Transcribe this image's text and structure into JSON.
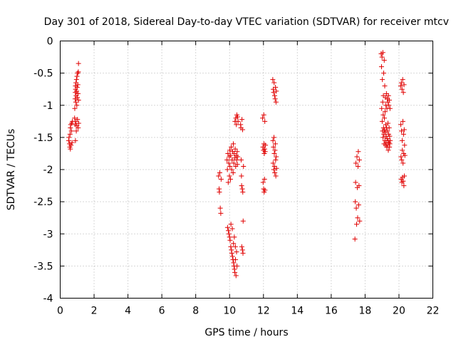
{
  "chart_data": {
    "type": "scatter",
    "title": "Day 301 of 2018, Sidereal Day-to-day VTEC variation (SDTVAR) for receiver mtcv",
    "xlabel": "GPS time / hours",
    "ylabel": "SDTVAR / TECUs",
    "xlim": [
      0,
      22
    ],
    "ylim": [
      -4,
      0
    ],
    "grid": true,
    "marker": "+",
    "color": "#e00000",
    "x_ticks": [
      0,
      2,
      4,
      6,
      8,
      10,
      12,
      14,
      16,
      18,
      20,
      22
    ],
    "x_tick_labels": [
      "0",
      "2",
      "4",
      "6",
      "8",
      "10",
      "12",
      "14",
      "16",
      "18",
      "20",
      "22"
    ],
    "y_ticks": [
      0,
      -0.5,
      -1,
      -1.5,
      -2,
      -2.5,
      -3,
      -3.5,
      -4
    ],
    "y_tick_labels": [
      "0",
      "-0.5",
      "-1",
      "-1.5",
      "-2",
      "-2.5",
      "-3",
      "-3.5",
      "-4"
    ],
    "series": [
      {
        "name": "SDTVAR",
        "points": [
          [
            0.5,
            -1.55
          ],
          [
            0.52,
            -1.5
          ],
          [
            0.55,
            -1.6
          ],
          [
            0.57,
            -1.65
          ],
          [
            0.58,
            -1.45
          ],
          [
            0.6,
            -1.35
          ],
          [
            0.6,
            -1.68
          ],
          [
            0.62,
            -1.3
          ],
          [
            0.64,
            -1.62
          ],
          [
            0.66,
            -1.4
          ],
          [
            0.68,
            -1.28
          ],
          [
            0.7,
            -1.58
          ],
          [
            0.72,
            -1.25
          ],
          [
            0.85,
            -1.2
          ],
          [
            0.86,
            -1.05
          ],
          [
            0.88,
            -0.9
          ],
          [
            0.88,
            -1.3
          ],
          [
            0.89,
            -0.8
          ],
          [
            0.9,
            -0.7
          ],
          [
            0.9,
            -1.55
          ],
          [
            0.91,
            -0.75
          ],
          [
            0.92,
            -0.95
          ],
          [
            0.92,
            -1.25
          ],
          [
            0.93,
            -0.65
          ],
          [
            0.94,
            -0.85
          ],
          [
            0.95,
            -1.4
          ],
          [
            0.96,
            -0.6
          ],
          [
            0.97,
            -0.78
          ],
          [
            0.98,
            -1.0
          ],
          [
            0.98,
            -1.32
          ],
          [
            0.99,
            -0.55
          ],
          [
            1.0,
            -0.72
          ],
          [
            1.01,
            -0.88
          ],
          [
            1.02,
            -1.22
          ],
          [
            1.03,
            -0.5
          ],
          [
            1.04,
            -0.68
          ],
          [
            1.05,
            -0.82
          ],
          [
            1.06,
            -1.35
          ],
          [
            1.07,
            -0.48
          ],
          [
            1.08,
            -0.35
          ],
          [
            1.08,
            -0.92
          ],
          [
            1.09,
            -1.28
          ],
          [
            9.35,
            -2.1
          ],
          [
            9.38,
            -2.3
          ],
          [
            9.4,
            -2.35
          ],
          [
            9.42,
            -2.05
          ],
          [
            9.45,
            -2.6
          ],
          [
            9.48,
            -2.68
          ],
          [
            9.5,
            -2.15
          ],
          [
            9.85,
            -1.85
          ],
          [
            9.87,
            -2.0
          ],
          [
            9.88,
            -2.9
          ],
          [
            9.9,
            -1.75
          ],
          [
            9.92,
            -2.2
          ],
          [
            9.93,
            -2.95
          ],
          [
            9.95,
            -1.9
          ],
          [
            9.96,
            -3.0
          ],
          [
            9.98,
            -1.8
          ],
          [
            9.99,
            -2.1
          ],
          [
            10.0,
            -3.05
          ],
          [
            10.01,
            -1.7
          ],
          [
            10.02,
            -1.95
          ],
          [
            10.03,
            -3.1
          ],
          [
            10.05,
            -2.15
          ],
          [
            10.06,
            -1.78
          ],
          [
            10.07,
            -3.2
          ],
          [
            10.08,
            -2.85
          ],
          [
            10.1,
            -1.65
          ],
          [
            10.11,
            -3.25
          ],
          [
            10.12,
            -2.0
          ],
          [
            10.13,
            -3.3
          ],
          [
            10.15,
            -1.85
          ],
          [
            10.16,
            -2.92
          ],
          [
            10.17,
            -3.35
          ],
          [
            10.18,
            -1.72
          ],
          [
            10.2,
            -3.4
          ],
          [
            10.21,
            -2.05
          ],
          [
            10.22,
            -1.6
          ],
          [
            10.23,
            -3.15
          ],
          [
            10.24,
            -3.45
          ],
          [
            10.25,
            -1.9
          ],
          [
            10.26,
            -3.5
          ],
          [
            10.27,
            -1.75
          ],
          [
            10.28,
            -3.05
          ],
          [
            10.29,
            -3.55
          ],
          [
            10.3,
            -1.82
          ],
          [
            10.31,
            -3.6
          ],
          [
            10.32,
            -1.25
          ],
          [
            10.33,
            -1.68
          ],
          [
            10.34,
            -3.2
          ],
          [
            10.35,
            -3.4
          ],
          [
            10.36,
            -1.95
          ],
          [
            10.37,
            -1.2
          ],
          [
            10.38,
            -3.65
          ],
          [
            10.39,
            -1.78
          ],
          [
            10.4,
            -1.3
          ],
          [
            10.41,
            -3.28
          ],
          [
            10.42,
            -1.85
          ],
          [
            10.43,
            -1.15
          ],
          [
            10.44,
            -3.5
          ],
          [
            10.45,
            -1.72
          ],
          [
            10.46,
            -1.92
          ],
          [
            10.47,
            -1.18
          ],
          [
            10.48,
            -1.8
          ],
          [
            10.5,
            -1.25
          ],
          [
            10.65,
            -1.3
          ],
          [
            10.67,
            -1.35
          ],
          [
            10.68,
            -1.85
          ],
          [
            10.7,
            -2.1
          ],
          [
            10.71,
            -2.25
          ],
          [
            10.72,
            -3.2
          ],
          [
            10.73,
            -1.22
          ],
          [
            10.75,
            -2.3
          ],
          [
            10.76,
            -3.25
          ],
          [
            10.77,
            -1.38
          ],
          [
            10.78,
            -2.35
          ],
          [
            10.79,
            -3.3
          ],
          [
            10.8,
            -2.8
          ],
          [
            10.82,
            -1.95
          ],
          [
            11.95,
            -1.2
          ],
          [
            11.97,
            -1.65
          ],
          [
            11.98,
            -2.2
          ],
          [
            12.0,
            -1.7
          ],
          [
            12.01,
            -2.3
          ],
          [
            12.02,
            -1.15
          ],
          [
            12.03,
            -1.6
          ],
          [
            12.04,
            -2.35
          ],
          [
            12.05,
            -1.75
          ],
          [
            12.06,
            -2.15
          ],
          [
            12.07,
            -1.68
          ],
          [
            12.08,
            -1.25
          ],
          [
            12.09,
            -2.32
          ],
          [
            12.1,
            -1.72
          ],
          [
            12.12,
            -1.62
          ],
          [
            12.55,
            -0.6
          ],
          [
            12.56,
            -1.55
          ],
          [
            12.57,
            -1.9
          ],
          [
            12.58,
            -0.75
          ],
          [
            12.59,
            -1.65
          ],
          [
            12.6,
            -0.8
          ],
          [
            12.61,
            -2.0
          ],
          [
            12.62,
            -1.5
          ],
          [
            12.63,
            -0.65
          ],
          [
            12.64,
            -1.75
          ],
          [
            12.65,
            -1.95
          ],
          [
            12.66,
            -0.85
          ],
          [
            12.67,
            -2.05
          ],
          [
            12.68,
            -1.7
          ],
          [
            12.69,
            -0.9
          ],
          [
            12.7,
            -1.6
          ],
          [
            12.71,
            -0.72
          ],
          [
            12.72,
            -1.85
          ],
          [
            12.73,
            -2.1
          ],
          [
            12.74,
            -0.95
          ],
          [
            12.75,
            -1.8
          ],
          [
            12.76,
            -0.78
          ],
          [
            12.77,
            -1.98
          ],
          [
            17.4,
            -3.08
          ],
          [
            17.42,
            -2.5
          ],
          [
            17.44,
            -2.2
          ],
          [
            17.46,
            -1.9
          ],
          [
            17.48,
            -2.6
          ],
          [
            17.5,
            -2.85
          ],
          [
            17.52,
            -1.8
          ],
          [
            17.54,
            -2.28
          ],
          [
            17.56,
            -2.75
          ],
          [
            17.58,
            -1.95
          ],
          [
            17.6,
            -1.72
          ],
          [
            17.62,
            -2.55
          ],
          [
            17.64,
            -2.25
          ],
          [
            17.66,
            -1.85
          ],
          [
            17.68,
            -2.8
          ],
          [
            18.95,
            -0.2
          ],
          [
            18.97,
            -0.4
          ],
          [
            18.98,
            -1.05
          ],
          [
            19.0,
            -0.25
          ],
          [
            19.01,
            -1.25
          ],
          [
            19.02,
            -0.6
          ],
          [
            19.03,
            -1.4
          ],
          [
            19.04,
            -0.95
          ],
          [
            19.05,
            -0.18
          ],
          [
            19.06,
            -1.5
          ],
          [
            19.07,
            -1.15
          ],
          [
            19.08,
            -0.85
          ],
          [
            19.09,
            -1.35
          ],
          [
            19.1,
            -0.5
          ],
          [
            19.11,
            -1.45
          ],
          [
            19.12,
            -1.6
          ],
          [
            19.13,
            -0.3
          ],
          [
            19.14,
            -1.2
          ],
          [
            19.15,
            -1.38
          ],
          [
            19.16,
            -0.7
          ],
          [
            19.17,
            -1.55
          ],
          [
            19.18,
            -1.1
          ],
          [
            19.19,
            -1.42
          ],
          [
            19.2,
            -0.88
          ],
          [
            19.21,
            -1.62
          ],
          [
            19.22,
            -1.3
          ],
          [
            19.23,
            -1.0
          ],
          [
            19.24,
            -1.48
          ],
          [
            19.25,
            -1.58
          ],
          [
            19.26,
            -0.82
          ],
          [
            19.27,
            -1.35
          ],
          [
            19.28,
            -1.65
          ],
          [
            19.29,
            -1.05
          ],
          [
            19.3,
            -1.52
          ],
          [
            19.31,
            -0.9
          ],
          [
            19.32,
            -1.4
          ],
          [
            19.33,
            -1.62
          ],
          [
            19.34,
            -0.95
          ],
          [
            19.35,
            -1.28
          ],
          [
            19.36,
            -1.55
          ],
          [
            19.37,
            -1.7
          ],
          [
            19.38,
            -0.85
          ],
          [
            19.39,
            -1.45
          ],
          [
            19.4,
            -1.0
          ],
          [
            19.41,
            -1.58
          ],
          [
            19.42,
            -1.35
          ],
          [
            19.43,
            -0.92
          ],
          [
            19.44,
            -1.65
          ],
          [
            19.45,
            -1.48
          ],
          [
            19.46,
            -1.6
          ],
          [
            19.47,
            -1.05
          ],
          [
            19.48,
            -1.55
          ],
          [
            20.1,
            -0.7
          ],
          [
            20.11,
            -1.3
          ],
          [
            20.12,
            -1.8
          ],
          [
            20.13,
            -2.15
          ],
          [
            20.14,
            -0.65
          ],
          [
            20.15,
            -1.4
          ],
          [
            20.16,
            -1.85
          ],
          [
            20.17,
            -2.2
          ],
          [
            20.18,
            -0.75
          ],
          [
            20.19,
            -1.55
          ],
          [
            20.2,
            -1.7
          ],
          [
            20.21,
            -2.12
          ],
          [
            20.22,
            -0.6
          ],
          [
            20.23,
            -1.25
          ],
          [
            20.24,
            -1.9
          ],
          [
            20.25,
            -2.18
          ],
          [
            20.26,
            -0.8
          ],
          [
            20.27,
            -1.45
          ],
          [
            20.28,
            -1.75
          ],
          [
            20.29,
            -2.25
          ],
          [
            20.3,
            -0.68
          ],
          [
            20.31,
            -1.38
          ],
          [
            20.32,
            -2.1
          ],
          [
            20.33,
            -1.62
          ],
          [
            20.35,
            -1.78
          ]
        ]
      }
    ]
  }
}
